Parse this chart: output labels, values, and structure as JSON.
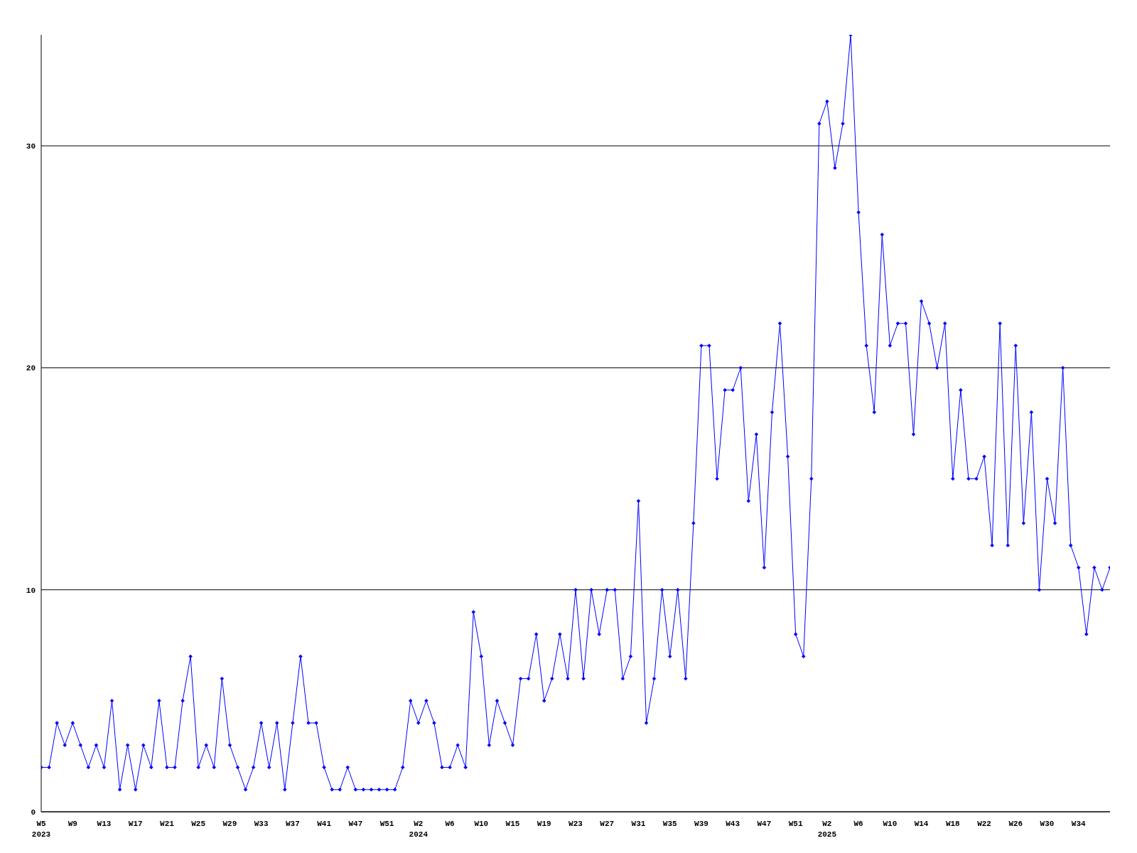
{
  "chart_data": {
    "type": "line",
    "categories": [
      "W5\n2023",
      null,
      null,
      null,
      "W9",
      null,
      null,
      null,
      "W13",
      null,
      null,
      null,
      "W17",
      null,
      null,
      null,
      "W21",
      null,
      null,
      null,
      "W25",
      null,
      null,
      null,
      "W29",
      null,
      null,
      null,
      "W33",
      null,
      null,
      null,
      "W37",
      null,
      null,
      null,
      "W41",
      null,
      null,
      null,
      "W47",
      null,
      null,
      null,
      "W51",
      null,
      null,
      null,
      "W2\n2024",
      null,
      null,
      null,
      "W6",
      null,
      null,
      null,
      "W10",
      null,
      null,
      null,
      "W15",
      null,
      null,
      null,
      "W19",
      null,
      null,
      null,
      "W23",
      null,
      null,
      null,
      "W27",
      null,
      null,
      null,
      "W31",
      null,
      null,
      null,
      "W35",
      null,
      null,
      null,
      "W39",
      null,
      null,
      null,
      "W43",
      null,
      null,
      null,
      "W47",
      null,
      null,
      null,
      "W51",
      null,
      null,
      null,
      "W2\n2025",
      null,
      null,
      null,
      "W6",
      null,
      null,
      null,
      "W10",
      null,
      null,
      null,
      "W14",
      null,
      null,
      null,
      "W18",
      null,
      null,
      null,
      "W22",
      null,
      null,
      null,
      "W26",
      null,
      null,
      null,
      "W30",
      null,
      null,
      null,
      "W34",
      null,
      null,
      null,
      null
    ],
    "series": [
      {
        "color": "#0000ff",
        "values": [
          2,
          2,
          4,
          3,
          4,
          3,
          2,
          3,
          2,
          5,
          1,
          3,
          1,
          3,
          2,
          5,
          2,
          2,
          5,
          7,
          2,
          3,
          2,
          6,
          3,
          2,
          1,
          2,
          4,
          2,
          4,
          1,
          4,
          7,
          4,
          4,
          2,
          1,
          1,
          2,
          1,
          1,
          1,
          1,
          1,
          1,
          2,
          5,
          4,
          5,
          4,
          2,
          2,
          3,
          2,
          9,
          7,
          3,
          5,
          4,
          3,
          6,
          6,
          8,
          5,
          6,
          8,
          6,
          10,
          6,
          10,
          8,
          10,
          10,
          6,
          7,
          14,
          4,
          6,
          10,
          7,
          10,
          6,
          13,
          21,
          21,
          15,
          19,
          19,
          20,
          14,
          17,
          11,
          18,
          22,
          16,
          8,
          7,
          15,
          31,
          32,
          29,
          31,
          35,
          27,
          21,
          18,
          26,
          21,
          22,
          22,
          17,
          23,
          22,
          20,
          22,
          15,
          19,
          15,
          15,
          16,
          12,
          22,
          12,
          21,
          13,
          18,
          10,
          15,
          13,
          20,
          12,
          11,
          8,
          11,
          10,
          11
        ]
      }
    ],
    "ylim": [
      0,
      35
    ],
    "yticks": [
      0,
      10,
      20,
      30
    ],
    "grid": "y",
    "marker": "diamond",
    "line_style": "solid"
  }
}
